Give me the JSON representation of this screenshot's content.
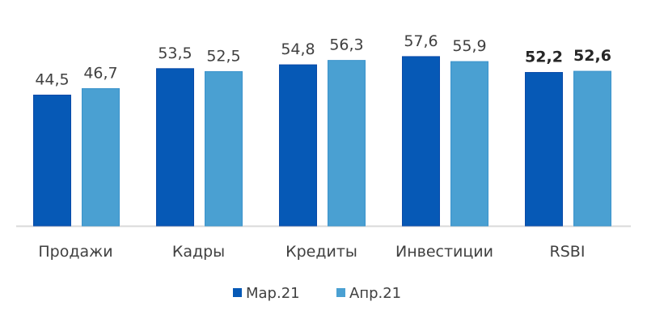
{
  "chart_data": {
    "type": "bar",
    "categories": [
      "Продажи",
      "Кадры",
      "Кредиты",
      "Инвестиции",
      "RSBI"
    ],
    "series": [
      {
        "name": "Мар.21",
        "values": [
          44.5,
          53.5,
          54.8,
          57.6,
          52.2
        ],
        "labels": [
          "44,5",
          "53,5",
          "54,8",
          "57,6",
          "52,2"
        ],
        "color": "#0659b6"
      },
      {
        "name": "Апр.21",
        "values": [
          46.7,
          52.5,
          56.3,
          55.9,
          52.6
        ],
        "labels": [
          "46,7",
          "52,5",
          "56,3",
          "55,9",
          "52,6"
        ],
        "color": "#4aa0d2"
      }
    ],
    "bold_categories": [
      "RSBI"
    ],
    "ylim": [
      0,
      60
    ],
    "grid": false,
    "legend": "bottom",
    "title": "",
    "xlabel": "",
    "ylabel": ""
  }
}
